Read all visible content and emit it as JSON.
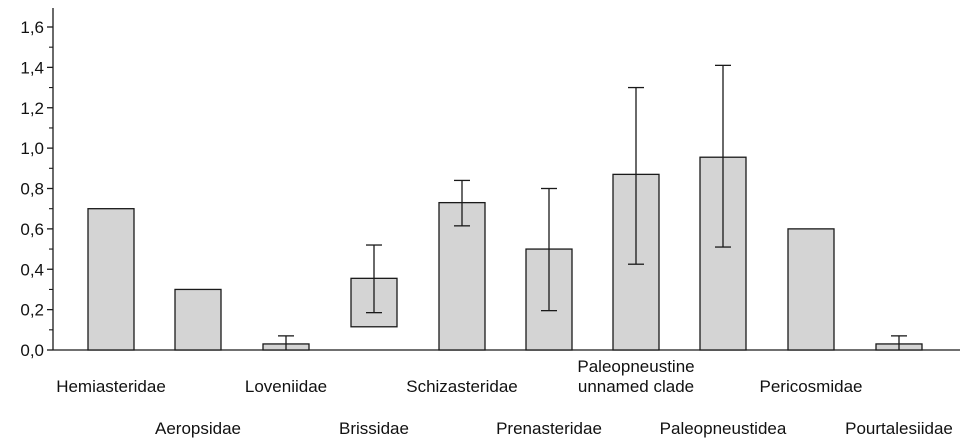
{
  "chart_data": {
    "type": "bar",
    "title": "",
    "xlabel": "",
    "ylabel": "",
    "ylim": [
      0,
      1.6
    ],
    "yticks": [
      "0,0",
      "0,2",
      "0,4",
      "0,6",
      "0,8",
      "1,0",
      "1,2",
      "1,4",
      "1,6"
    ],
    "categories": [
      "Hemiasteridae",
      "Aeropsidae",
      "Loveniidae",
      "Brissidae",
      "Schizasteridae",
      "Prenasteridae",
      "Paleopneustine unnamed clade",
      "Paleopneustidea",
      "Pericosmidae",
      "Pourtalesiidae"
    ],
    "label_lines": [
      [
        "Hemiasteridae"
      ],
      [
        "Aeropsidae"
      ],
      [
        "Loveniidae"
      ],
      [
        "Brissidae"
      ],
      [
        "Schizasteridae"
      ],
      [
        "Prenasteridae"
      ],
      [
        "Paleopneustine",
        "unnamed clade"
      ],
      [
        "Paleopneustidea"
      ],
      [
        "Pericosmidae"
      ],
      [
        "Pourtalesiidae"
      ]
    ],
    "bars": [
      {
        "bottom": 0.0,
        "top": 0.7
      },
      {
        "bottom": 0.0,
        "top": 0.3
      },
      {
        "bottom": 0.0,
        "top": 0.03
      },
      {
        "bottom": 0.115,
        "top": 0.355
      },
      {
        "bottom": 0.0,
        "top": 0.73
      },
      {
        "bottom": 0.0,
        "top": 0.5
      },
      {
        "bottom": 0.0,
        "top": 0.87
      },
      {
        "bottom": 0.0,
        "top": 0.955
      },
      {
        "bottom": 0.0,
        "top": 0.6
      },
      {
        "bottom": 0.0,
        "top": 0.03
      }
    ],
    "errors": [
      null,
      null,
      [
        0.0,
        0.07
      ],
      [
        0.185,
        0.52
      ],
      [
        0.615,
        0.84
      ],
      [
        0.195,
        0.8
      ],
      [
        0.425,
        1.3
      ],
      [
        0.51,
        1.41
      ],
      null,
      [
        0.0,
        0.07
      ]
    ],
    "grid": false,
    "colors": {
      "bar_fill": "#d4d4d4",
      "bar_stroke": "#1a1a1a",
      "axis": "#1a1a1a"
    }
  }
}
